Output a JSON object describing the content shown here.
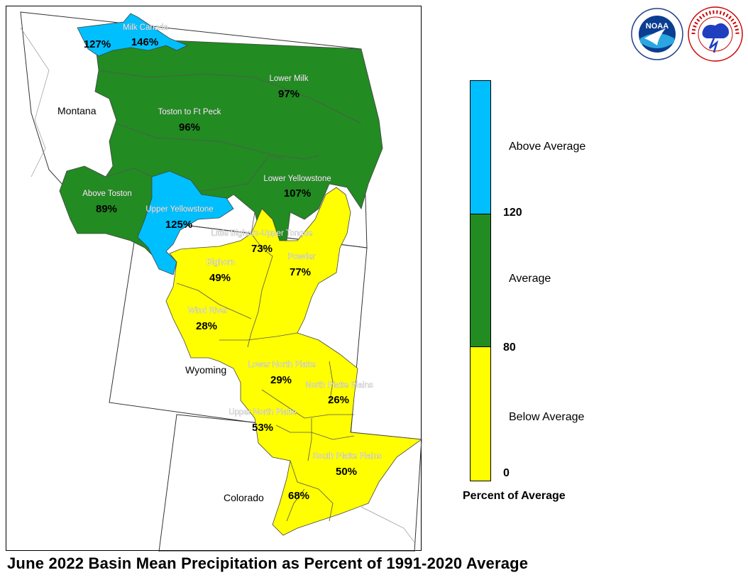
{
  "title": "June 2022 Basin Mean Precipitation as Percent of 1991-2020 Average",
  "colors": {
    "above": "#00bfff",
    "average": "#228b22",
    "below": "#ffff00"
  },
  "states": [
    {
      "key": "montana",
      "name": "Montana"
    },
    {
      "key": "wyoming",
      "name": "Wyoming"
    },
    {
      "key": "colorado",
      "name": "Colorado"
    }
  ],
  "basins": [
    {
      "key": "milk_canada_west",
      "name": "",
      "value": "127%",
      "category": "above"
    },
    {
      "key": "milk_canada",
      "name": "Milk Canada",
      "value": "146%",
      "category": "above"
    },
    {
      "key": "lower_milk",
      "name": "Lower Milk",
      "value": "97%",
      "category": "average"
    },
    {
      "key": "toston_ft_peck",
      "name": "Toston to Ft Peck",
      "value": "96%",
      "category": "average"
    },
    {
      "key": "above_toston",
      "name": "Above Toston",
      "value": "89%",
      "category": "average"
    },
    {
      "key": "lower_yellowstone",
      "name": "Lower Yellowstone",
      "value": "107%",
      "category": "average"
    },
    {
      "key": "upper_yellowstone",
      "name": "Upper Yellowstone",
      "value": "125%",
      "category": "above"
    },
    {
      "key": "little_bighorn",
      "name": "Little Bighorn-Upper Tongue",
      "value": "73%",
      "category": "below"
    },
    {
      "key": "bighorn",
      "name": "Bighorn",
      "value": "49%",
      "category": "below"
    },
    {
      "key": "powder",
      "name": "Powder",
      "value": "77%",
      "category": "below"
    },
    {
      "key": "wind_river",
      "name": "Wind River",
      "value": "28%",
      "category": "below"
    },
    {
      "key": "lower_north_platte",
      "name": "Lower North Platte",
      "value": "29%",
      "category": "below"
    },
    {
      "key": "north_platte_plains",
      "name": "North Platte Plains",
      "value": "26%",
      "category": "below"
    },
    {
      "key": "upper_north_platte",
      "name": "Upper North Platte",
      "value": "53%",
      "category": "below"
    },
    {
      "key": "south_platte_plains",
      "name": "South Platte Plains",
      "value": "50%",
      "category": "below"
    },
    {
      "key": "south_platte_mtn",
      "name": "",
      "value": "68%",
      "category": "below"
    }
  ],
  "legend": {
    "title": "Percent of Average",
    "categories": [
      {
        "label": "Above Average",
        "color": "#00bfff"
      },
      {
        "label": "Average",
        "color": "#228b22"
      },
      {
        "label": "Below Average",
        "color": "#ffff00"
      }
    ],
    "ticks": [
      "120",
      "80",
      "0"
    ]
  },
  "logos": {
    "noaa": {
      "text": "NOAA",
      "icon": "noaa-logo"
    },
    "nws": {
      "text": "NATIONAL WEATHER SERVICE",
      "icon": "nws-logo"
    }
  }
}
